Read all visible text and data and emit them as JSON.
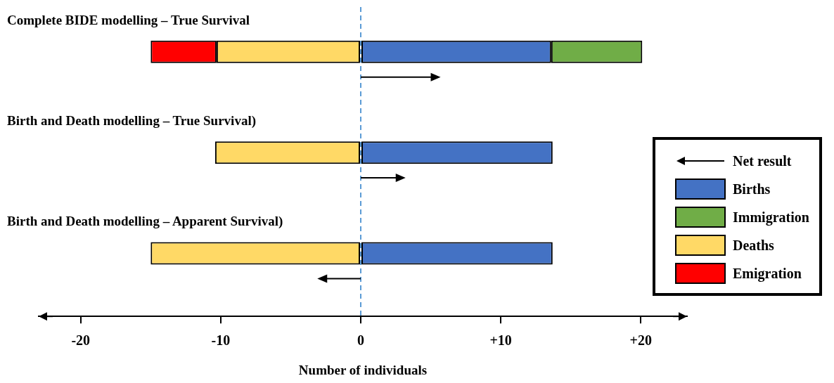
{
  "chart_data": {
    "type": "bar",
    "orientation": "horizontal",
    "stacked": true,
    "xlabel": "Number of individuals",
    "categories": [
      "Complete BIDE modelling – True Survival",
      "Birth and Death modelling – True Survival)",
      "Birth and Death modelling – Apparent Survival)"
    ],
    "series": [
      {
        "name": "Births",
        "color": "#4472c4",
        "values": [
          13.6,
          13.7,
          13.7
        ]
      },
      {
        "name": "Immigration",
        "color": "#70ad47",
        "values": [
          6.5,
          null,
          null
        ]
      },
      {
        "name": "Deaths",
        "color": "#ffd966",
        "values": [
          -10.3,
          -10.4,
          -15
        ]
      },
      {
        "name": "Emigration",
        "color": "#ff0000",
        "values": [
          -4.7,
          null,
          null
        ]
      },
      {
        "name": "Net result",
        "type": "lollipop",
        "marker": "triangle",
        "color": "#000000",
        "values": [
          5.4,
          2.9,
          -2.8
        ]
      }
    ],
    "xlim": [
      -23,
      23.3
    ],
    "xticks": [
      -20,
      -10,
      0,
      {
        "value": 10,
        "label": "+10"
      },
      {
        "value": 20,
        "label": "+20"
      }
    ],
    "ref_lines": [
      {
        "axis": "x",
        "value": 0,
        "color": "#5b9bd5",
        "line_style": "dashed"
      }
    ],
    "legend": "right"
  }
}
